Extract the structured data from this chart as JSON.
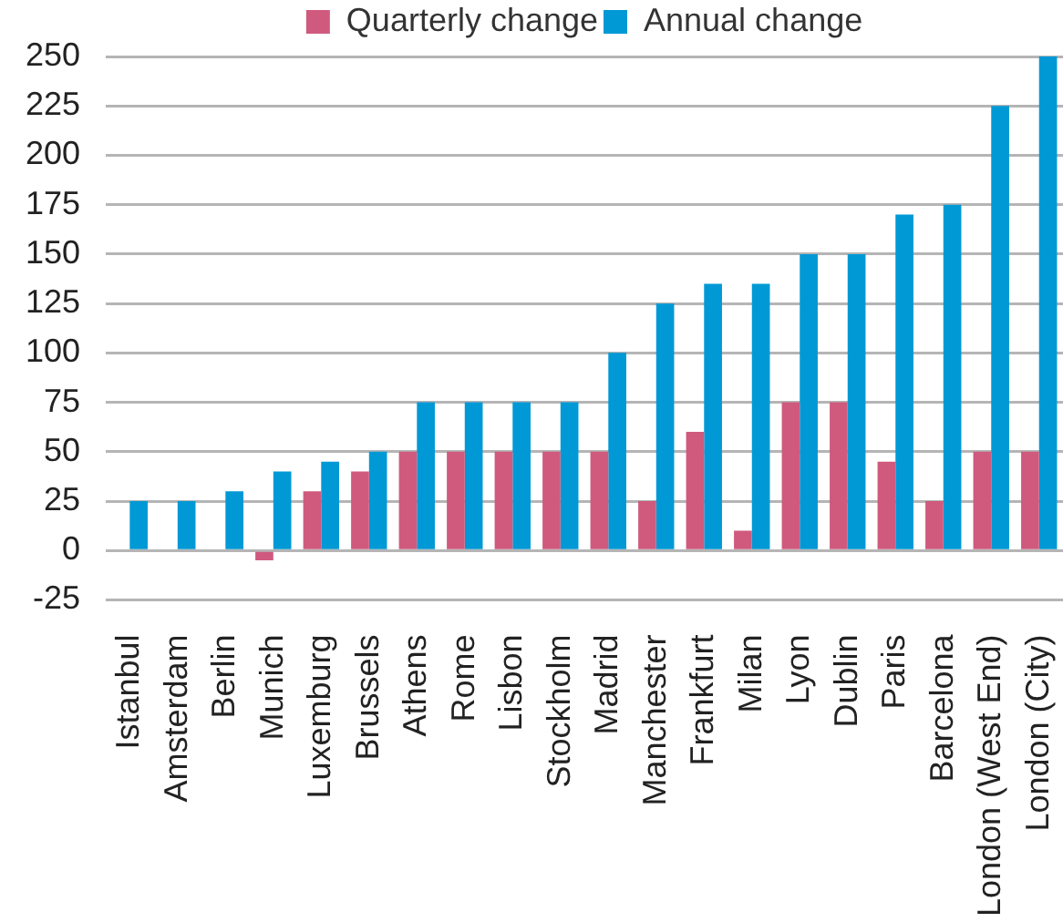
{
  "chart_data": {
    "type": "bar",
    "categories": [
      "Istanbul",
      "Amsterdam",
      "Berlin",
      "Munich",
      "Luxemburg",
      "Brussels",
      "Athens",
      "Rome",
      "Lisbon",
      "Stockholm",
      "Madrid",
      "Manchester",
      "Frankfurt",
      "Milan",
      "Lyon",
      "Dublin",
      "Paris",
      "Barcelona",
      "London (West End)",
      "London (City)"
    ],
    "series": [
      {
        "name": "Quarterly change",
        "color": "#cf5a7e",
        "values": [
          0,
          0,
          0,
          -5,
          30,
          40,
          50,
          50,
          50,
          50,
          50,
          25,
          60,
          10,
          75,
          75,
          45,
          25,
          50,
          50
        ]
      },
      {
        "name": "Annual change",
        "color": "#0099d6",
        "values": [
          25,
          25,
          30,
          40,
          45,
          50,
          75,
          75,
          75,
          75,
          100,
          125,
          135,
          135,
          150,
          150,
          170,
          175,
          225,
          250
        ]
      }
    ],
    "ylim": [
      -25,
      250
    ],
    "yticks": [
      -25,
      0,
      25,
      50,
      75,
      100,
      125,
      150,
      175,
      200,
      225,
      250
    ],
    "grid": "y",
    "legend": "top"
  }
}
